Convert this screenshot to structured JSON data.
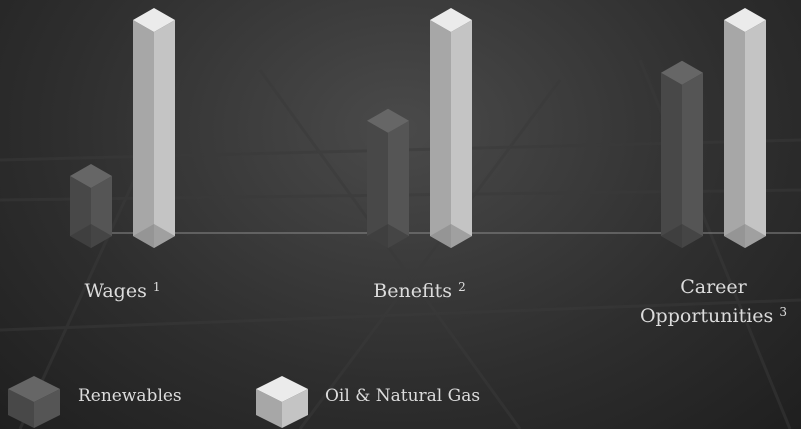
{
  "chart_data": {
    "type": "prism-bar",
    "categories": [
      "Wages",
      "Benefits",
      "Career Opportunities"
    ],
    "footnotes": [
      "1",
      "2",
      "3"
    ],
    "series": [
      {
        "name": "Renewables",
        "color": "#555555",
        "values": [
          35,
          58,
          78
        ]
      },
      {
        "name": "Oil & Natural Gas",
        "color": "#c4c4c4",
        "values": [
          100,
          100,
          100
        ]
      }
    ]
  }
}
